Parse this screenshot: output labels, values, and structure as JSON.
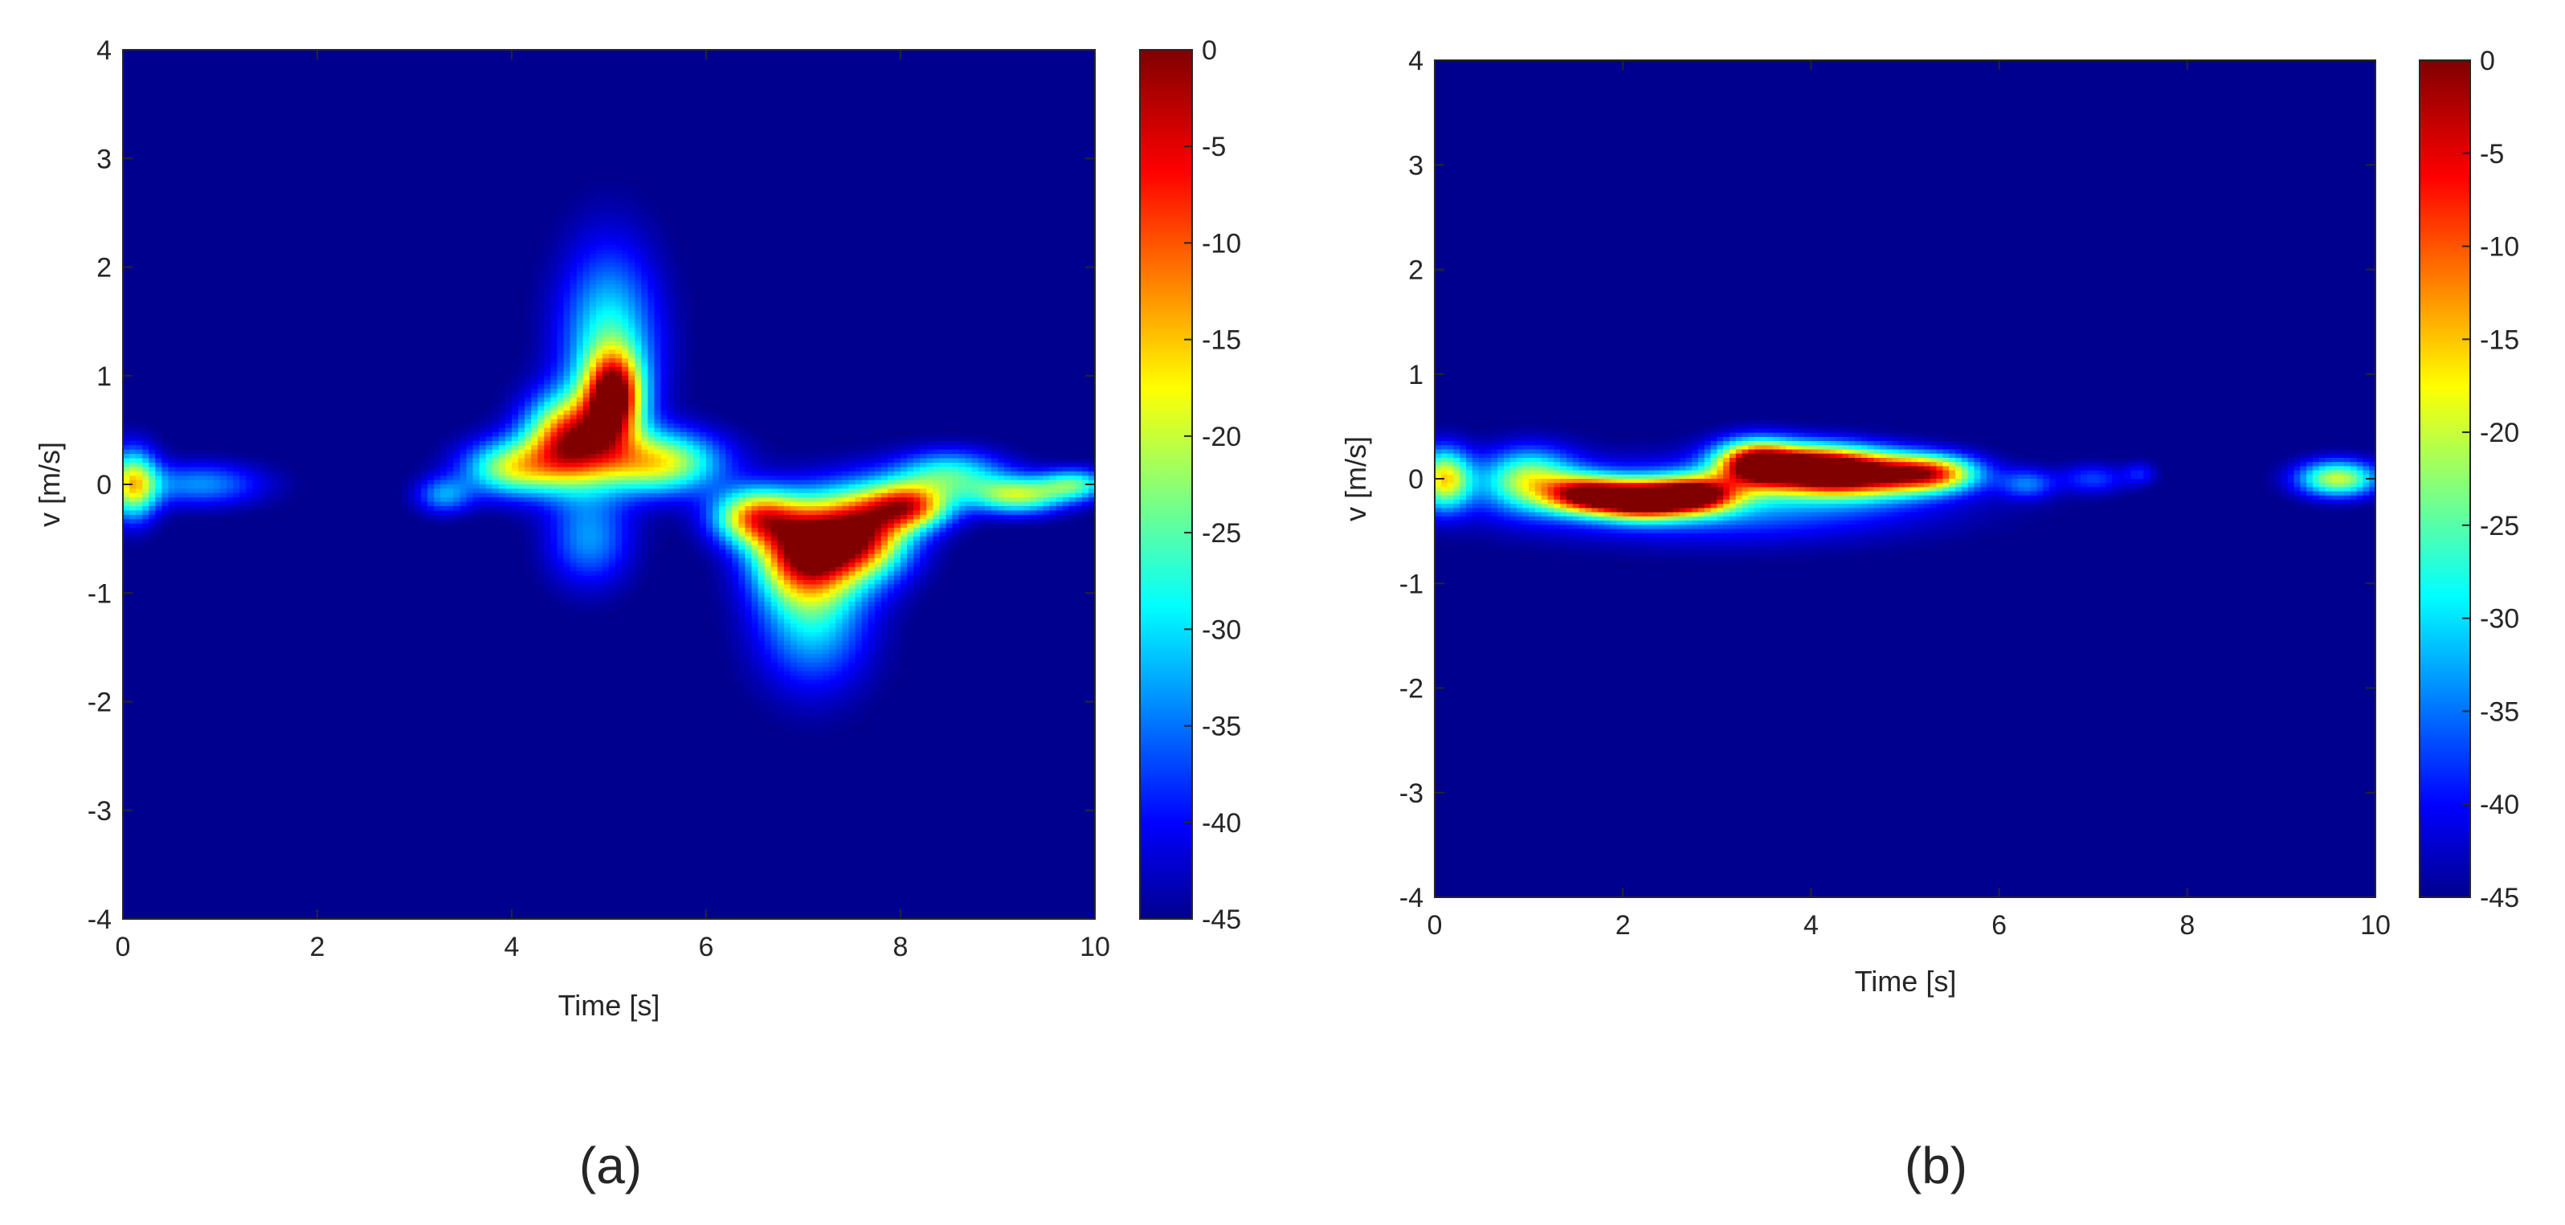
{
  "chart_data": [
    {
      "panel_label": "(a)",
      "type": "heatmap",
      "xlabel": "Time [s]",
      "ylabel": "v [m/s]",
      "xlim": [
        0,
        10
      ],
      "ylim": [
        -4,
        4
      ],
      "xticks": [
        "0",
        "2",
        "4",
        "6",
        "8",
        "10"
      ],
      "yticks": [
        "4",
        "3",
        "2",
        "1",
        "0",
        "-1",
        "-2",
        "-3",
        "-4"
      ],
      "colorbar": {
        "min": -45,
        "max": 0,
        "ticks": [
          "0",
          "-5",
          "-10",
          "-15",
          "-20",
          "-25",
          "-30",
          "-35",
          "-40",
          "-45"
        ]
      },
      "blobs": [
        {
          "t": 0.1,
          "v": 0.0,
          "st": 0.18,
          "sv": 0.22,
          "a": 28
        },
        {
          "t": 0.8,
          "v": 0.0,
          "st": 0.45,
          "sv": 0.14,
          "a": 12
        },
        {
          "t": 3.3,
          "v": -0.1,
          "st": 0.2,
          "sv": 0.12,
          "a": 12
        },
        {
          "t": 4.0,
          "v": 0.15,
          "st": 0.35,
          "sv": 0.18,
          "a": 24
        },
        {
          "t": 4.6,
          "v": 0.4,
          "st": 0.32,
          "sv": 0.28,
          "a": 38
        },
        {
          "t": 5.05,
          "v": 0.8,
          "st": 0.2,
          "sv": 0.28,
          "a": 38
        },
        {
          "t": 5.0,
          "v": 1.3,
          "st": 0.35,
          "sv": 0.6,
          "a": 18
        },
        {
          "t": 5.5,
          "v": 0.2,
          "st": 0.45,
          "sv": 0.2,
          "a": 28
        },
        {
          "t": 4.8,
          "v": -0.5,
          "st": 0.3,
          "sv": 0.3,
          "a": 12
        },
        {
          "t": 6.5,
          "v": -0.3,
          "st": 0.3,
          "sv": 0.18,
          "a": 30
        },
        {
          "t": 7.0,
          "v": -0.6,
          "st": 0.35,
          "sv": 0.3,
          "a": 38
        },
        {
          "t": 7.6,
          "v": -0.45,
          "st": 0.35,
          "sv": 0.28,
          "a": 38
        },
        {
          "t": 7.1,
          "v": -1.2,
          "st": 0.4,
          "sv": 0.45,
          "a": 16
        },
        {
          "t": 8.1,
          "v": -0.2,
          "st": 0.3,
          "sv": 0.15,
          "a": 32
        },
        {
          "t": 8.5,
          "v": 0.1,
          "st": 0.4,
          "sv": 0.15,
          "a": 18
        },
        {
          "t": 9.2,
          "v": -0.1,
          "st": 0.35,
          "sv": 0.12,
          "a": 24
        },
        {
          "t": 9.8,
          "v": 0.0,
          "st": 0.25,
          "sv": 0.1,
          "a": 18
        }
      ]
    },
    {
      "panel_label": "(b)",
      "type": "heatmap",
      "xlabel": "Time [s]",
      "ylabel": "v [m/s]",
      "xlim": [
        0,
        10
      ],
      "ylim": [
        -4,
        4
      ],
      "xticks": [
        "0",
        "2",
        "4",
        "6",
        "8",
        "10"
      ],
      "yticks": [
        "4",
        "3",
        "2",
        "1",
        "0",
        "-1",
        "-2",
        "-3",
        "-4"
      ],
      "colorbar": {
        "min": -45,
        "max": 0,
        "ticks": [
          "0",
          "-5",
          "-10",
          "-15",
          "-20",
          "-25",
          "-30",
          "-35",
          "-40",
          "-45"
        ]
      },
      "blobs": [
        {
          "t": 0.1,
          "v": 0.0,
          "st": 0.2,
          "sv": 0.2,
          "a": 28
        },
        {
          "t": 1.0,
          "v": 0.0,
          "st": 0.35,
          "sv": 0.2,
          "a": 22
        },
        {
          "t": 1.6,
          "v": -0.15,
          "st": 0.3,
          "sv": 0.12,
          "a": 32
        },
        {
          "t": 2.2,
          "v": -0.2,
          "st": 0.35,
          "sv": 0.12,
          "a": 46
        },
        {
          "t": 2.8,
          "v": -0.15,
          "st": 0.3,
          "sv": 0.12,
          "a": 34
        },
        {
          "t": 3.4,
          "v": 0.15,
          "st": 0.3,
          "sv": 0.15,
          "a": 40
        },
        {
          "t": 4.0,
          "v": 0.1,
          "st": 0.4,
          "sv": 0.15,
          "a": 40
        },
        {
          "t": 4.6,
          "v": 0.05,
          "st": 0.45,
          "sv": 0.15,
          "a": 34
        },
        {
          "t": 5.3,
          "v": 0.05,
          "st": 0.35,
          "sv": 0.12,
          "a": 30
        },
        {
          "t": 3.0,
          "v": -0.2,
          "st": 1.5,
          "sv": 0.25,
          "a": 14
        },
        {
          "t": 6.3,
          "v": -0.05,
          "st": 0.2,
          "sv": 0.1,
          "a": 10
        },
        {
          "t": 7.0,
          "v": 0.0,
          "st": 0.25,
          "sv": 0.1,
          "a": 8
        },
        {
          "t": 7.5,
          "v": 0.05,
          "st": 0.12,
          "sv": 0.08,
          "a": 6
        },
        {
          "t": 9.6,
          "v": 0.0,
          "st": 0.3,
          "sv": 0.12,
          "a": 26
        }
      ]
    }
  ]
}
